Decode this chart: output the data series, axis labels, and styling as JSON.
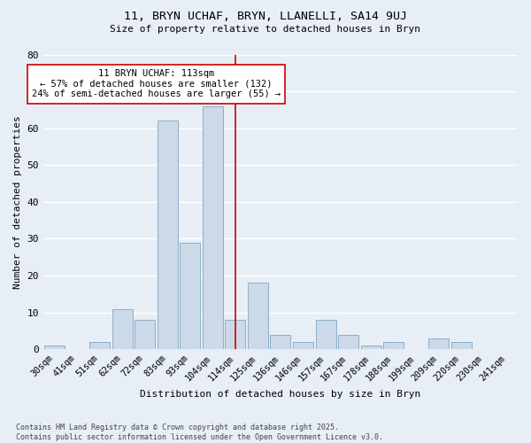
{
  "title1": "11, BRYN UCHAF, BRYN, LLANELLI, SA14 9UJ",
  "title2": "Size of property relative to detached houses in Bryn",
  "xlabel": "Distribution of detached houses by size in Bryn",
  "ylabel": "Number of detached properties",
  "bar_labels": [
    "30sqm",
    "41sqm",
    "51sqm",
    "62sqm",
    "72sqm",
    "83sqm",
    "93sqm",
    "104sqm",
    "114sqm",
    "125sqm",
    "136sqm",
    "146sqm",
    "157sqm",
    "167sqm",
    "178sqm",
    "188sqm",
    "199sqm",
    "209sqm",
    "220sqm",
    "230sqm",
    "241sqm"
  ],
  "bar_values": [
    1,
    0,
    2,
    11,
    8,
    62,
    29,
    66,
    8,
    18,
    4,
    2,
    8,
    4,
    1,
    2,
    0,
    3,
    2,
    0,
    0
  ],
  "bar_color": "#ccd9e8",
  "bar_edge_color": "#8bafc8",
  "vline_x": 8,
  "vline_color": "#cc0000",
  "annotation_text": "11 BRYN UCHAF: 113sqm\n← 57% of detached houses are smaller (132)\n24% of semi-detached houses are larger (55) →",
  "annotation_box_color": "#ffffff",
  "annotation_box_edge": "#cc0000",
  "ylim": [
    0,
    80
  ],
  "yticks": [
    0,
    10,
    20,
    30,
    40,
    50,
    60,
    70,
    80
  ],
  "footer_text": "Contains HM Land Registry data © Crown copyright and database right 2025.\nContains public sector information licensed under the Open Government Licence v3.0.",
  "bg_color": "#e8eef5",
  "grid_color": "#ffffff"
}
